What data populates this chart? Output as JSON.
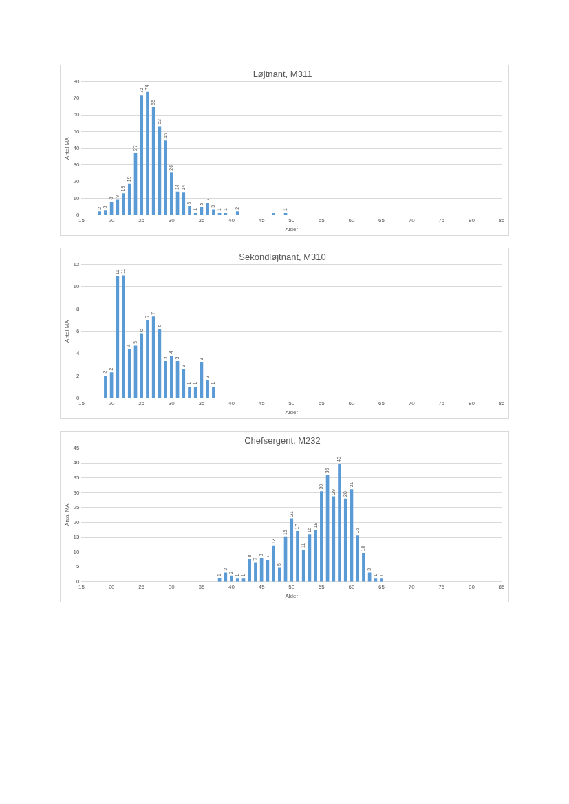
{
  "chart_data": [
    {
      "type": "bar",
      "title": "Løjtnant, M311",
      "xlabel": "Alder",
      "ylabel": "Antal MA",
      "x": [
        18,
        19,
        20,
        21,
        22,
        23,
        24,
        25,
        26,
        27,
        28,
        29,
        30,
        31,
        32,
        33,
        34,
        35,
        36,
        37,
        38,
        39,
        41,
        47,
        49
      ],
      "values": [
        2.1,
        2.6,
        8,
        9.1,
        12.9,
        18.8,
        37.3,
        71.8,
        73.6,
        64.6,
        53.1,
        44.6,
        25.6,
        13.9,
        13.7,
        5.1,
        1.3,
        4.7,
        7.2,
        3.3,
        1.2,
        1.2,
        2.1,
        1.1,
        1.2
      ],
      "value_labels": [
        "2",
        "3",
        "8",
        "9",
        "13",
        "19",
        "37",
        "72",
        "74",
        "65",
        "53",
        "45",
        "26",
        "14",
        "14",
        "5",
        "1",
        "5",
        "7",
        "3",
        "1",
        "1",
        "2",
        "1",
        "1"
      ],
      "color": "#5b9bd5",
      "xlim": [
        15,
        85
      ],
      "xticks": [
        15,
        20,
        25,
        30,
        35,
        40,
        45,
        50,
        55,
        60,
        65,
        70,
        75,
        80,
        85
      ],
      "ylim": [
        0,
        80
      ],
      "yticks": [
        0,
        10,
        20,
        30,
        40,
        50,
        60,
        70,
        80
      ],
      "grid": "y",
      "legend": false
    },
    {
      "type": "bar",
      "title": "Sekondløjtnant, M310",
      "xlabel": "Alder",
      "ylabel": "Antal MA",
      "x": [
        19,
        20,
        21,
        22,
        23,
        24,
        25,
        26,
        27,
        28,
        29,
        30,
        31,
        32,
        33,
        34,
        35,
        36,
        37
      ],
      "values": [
        2.0,
        2.3,
        10.9,
        11.0,
        4.4,
        4.7,
        5.8,
        7.0,
        7.3,
        6.2,
        3.3,
        3.8,
        3.3,
        2.6,
        1.0,
        1.0,
        3.2,
        1.6,
        1.0
      ],
      "value_labels": [
        "2",
        "2",
        "11",
        "11",
        "4",
        "5",
        "6",
        "7",
        "7",
        "6",
        "3",
        "4",
        "3",
        "3",
        "1",
        "1",
        "3",
        "2",
        "1"
      ],
      "color": "#5b9bd5",
      "xlim": [
        15,
        85
      ],
      "xticks": [
        15,
        20,
        25,
        30,
        35,
        40,
        45,
        50,
        55,
        60,
        65,
        70,
        75,
        80,
        85
      ],
      "ylim": [
        0,
        12
      ],
      "yticks": [
        0,
        2,
        4,
        6,
        8,
        10,
        12
      ],
      "grid": "y",
      "legend": false
    },
    {
      "type": "bar",
      "title": "Chefsergent, M232",
      "xlabel": "Alder",
      "ylabel": "Antal MA",
      "x": [
        38,
        39,
        40,
        41,
        42,
        43,
        44,
        45,
        46,
        47,
        48,
        49,
        50,
        51,
        52,
        53,
        54,
        55,
        56,
        57,
        58,
        59,
        60,
        61,
        62,
        63,
        64,
        65
      ],
      "values": [
        1.1,
        3,
        2,
        1,
        1,
        7.5,
        6.5,
        7.8,
        7.3,
        12,
        4.6,
        15,
        21.3,
        17,
        10.6,
        15.8,
        17.5,
        30.4,
        35.8,
        28.7,
        39.6,
        28,
        31.1,
        15.6,
        9.6,
        3,
        1,
        1
      ],
      "value_labels": [
        "1",
        "3",
        "2",
        "1",
        "1",
        "8",
        "7",
        "8",
        "7",
        "12",
        "5",
        "15",
        "21",
        "17",
        "11",
        "16",
        "18",
        "30",
        "36",
        "29",
        "40",
        "28",
        "31",
        "16",
        "10",
        "3",
        "1",
        "1"
      ],
      "color": "#5b9bd5",
      "xlim": [
        15,
        85
      ],
      "xticks": [
        15,
        20,
        25,
        30,
        35,
        40,
        45,
        50,
        55,
        60,
        65,
        70,
        75,
        80,
        85
      ],
      "ylim": [
        0,
        45
      ],
      "yticks": [
        0,
        5,
        10,
        15,
        20,
        25,
        30,
        35,
        40,
        45
      ],
      "grid": "y",
      "legend": false
    }
  ]
}
